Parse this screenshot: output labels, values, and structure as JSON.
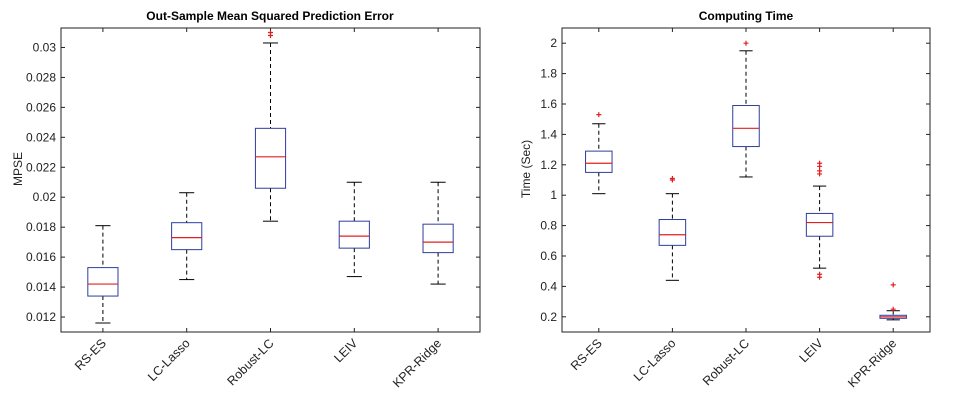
{
  "chart_data": [
    {
      "type": "box",
      "title": "Out-Sample Mean Squared Prediction Error",
      "xlabel": "",
      "ylabel": "MPSE",
      "ylim": [
        0.011,
        0.0313
      ],
      "yticks": [
        0.012,
        0.014,
        0.016,
        0.018,
        0.02,
        0.022,
        0.024,
        0.026,
        0.028,
        0.03
      ],
      "ytick_labels": [
        "0.012",
        "0.014",
        "0.016",
        "0.018",
        "0.02",
        "0.022",
        "0.024",
        "0.026",
        "0.028",
        "0.03"
      ],
      "categories": [
        "RS-ES",
        "LC-Lasso",
        "Robust-LC",
        "LEIV",
        "KPR-Ridge"
      ],
      "boxes": [
        {
          "whisker_low": 0.0116,
          "q1": 0.0134,
          "median": 0.0142,
          "q3": 0.0153,
          "whisker_high": 0.0181,
          "outliers": []
        },
        {
          "whisker_low": 0.0145,
          "q1": 0.0165,
          "median": 0.0173,
          "q3": 0.0183,
          "whisker_high": 0.0203,
          "outliers": []
        },
        {
          "whisker_low": 0.0184,
          "q1": 0.0206,
          "median": 0.0227,
          "q3": 0.0246,
          "whisker_high": 0.0303,
          "outliers": [
            0.0308,
            0.031
          ]
        },
        {
          "whisker_low": 0.0147,
          "q1": 0.0166,
          "median": 0.0174,
          "q3": 0.0184,
          "whisker_high": 0.021,
          "outliers": []
        },
        {
          "whisker_low": 0.0142,
          "q1": 0.0163,
          "median": 0.017,
          "q3": 0.0182,
          "whisker_high": 0.021,
          "outliers": []
        }
      ]
    },
    {
      "type": "box",
      "title": "Computing Time",
      "xlabel": "",
      "ylabel": "Time (Sec)",
      "ylim": [
        0.1,
        2.1
      ],
      "yticks": [
        0.2,
        0.4,
        0.6,
        0.8,
        1,
        1.2,
        1.4,
        1.6,
        1.8,
        2
      ],
      "ytick_labels": [
        "0.2",
        "0.4",
        "0.6",
        "0.8",
        "1",
        "1.2",
        "1.4",
        "1.6",
        "1.8",
        "2"
      ],
      "categories": [
        "RS-ES",
        "LC-Lasso",
        "Robust-LC",
        "LEIV",
        "KPR-Ridge"
      ],
      "boxes": [
        {
          "whisker_low": 1.01,
          "q1": 1.15,
          "median": 1.21,
          "q3": 1.29,
          "whisker_high": 1.47,
          "outliers": [
            1.53
          ]
        },
        {
          "whisker_low": 0.44,
          "q1": 0.67,
          "median": 0.74,
          "q3": 0.84,
          "whisker_high": 1.01,
          "outliers": [
            1.1,
            1.11
          ]
        },
        {
          "whisker_low": 1.12,
          "q1": 1.32,
          "median": 1.44,
          "q3": 1.59,
          "whisker_high": 1.95,
          "outliers": [
            2.0
          ]
        },
        {
          "whisker_low": 0.52,
          "q1": 0.73,
          "median": 0.82,
          "q3": 0.88,
          "whisker_high": 1.06,
          "outliers": [
            0.46,
            0.48,
            1.14,
            1.16,
            1.19,
            1.21
          ]
        },
        {
          "whisker_low": 0.18,
          "q1": 0.19,
          "median": 0.2,
          "q3": 0.21,
          "whisker_high": 0.24,
          "outliers": [
            0.25,
            0.41
          ]
        }
      ]
    }
  ],
  "colors": {
    "box": "#2e3d9e",
    "median": "#e02020",
    "whisker": "#000000",
    "outlier": "#e02020",
    "axes": "#222222"
  }
}
